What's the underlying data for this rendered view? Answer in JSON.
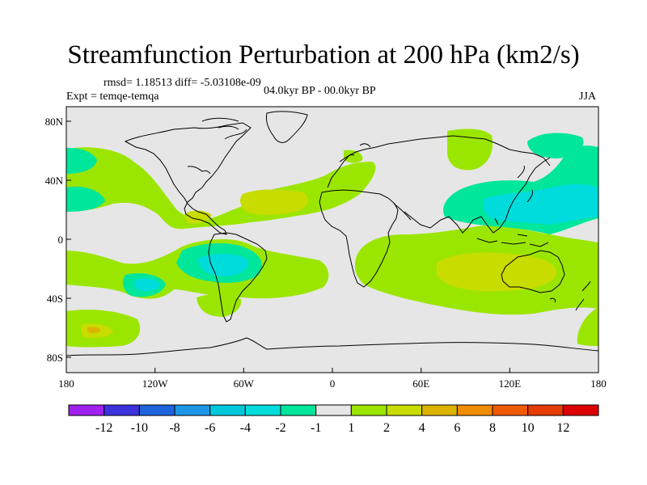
{
  "title": "Streamfunction Perturbation at 200 hPa (km2/s)",
  "rmsd_line": "rmsd= 1.18513 diff= -5.03108e-09",
  "period_line": "04.0kyr BP - 00.0kyr BP",
  "experiment_line": "Expt = temqe-temqa",
  "season": "JJA",
  "map": {
    "lon_labels": [
      "180",
      "120W",
      "60W",
      "0",
      "60E",
      "120E",
      "180"
    ],
    "lat_labels": [
      "80N",
      "40N",
      "0",
      "40S",
      "80S"
    ]
  },
  "colorbar": {
    "labels": [
      "-12",
      "-10",
      "-8",
      "-6",
      "-4",
      "-2",
      "-1",
      "1",
      "2",
      "4",
      "6",
      "8",
      "10",
      "12"
    ],
    "colors": [
      "#a020f0",
      "#3c32dc",
      "#1e64dc",
      "#1e96e6",
      "#00c8dc",
      "#00dcdc",
      "#00e69b",
      "#e6e6e6",
      "#9be600",
      "#c8dc00",
      "#dcb400",
      "#f08c00",
      "#f05a00",
      "#e63c00",
      "#dc0000"
    ]
  }
}
